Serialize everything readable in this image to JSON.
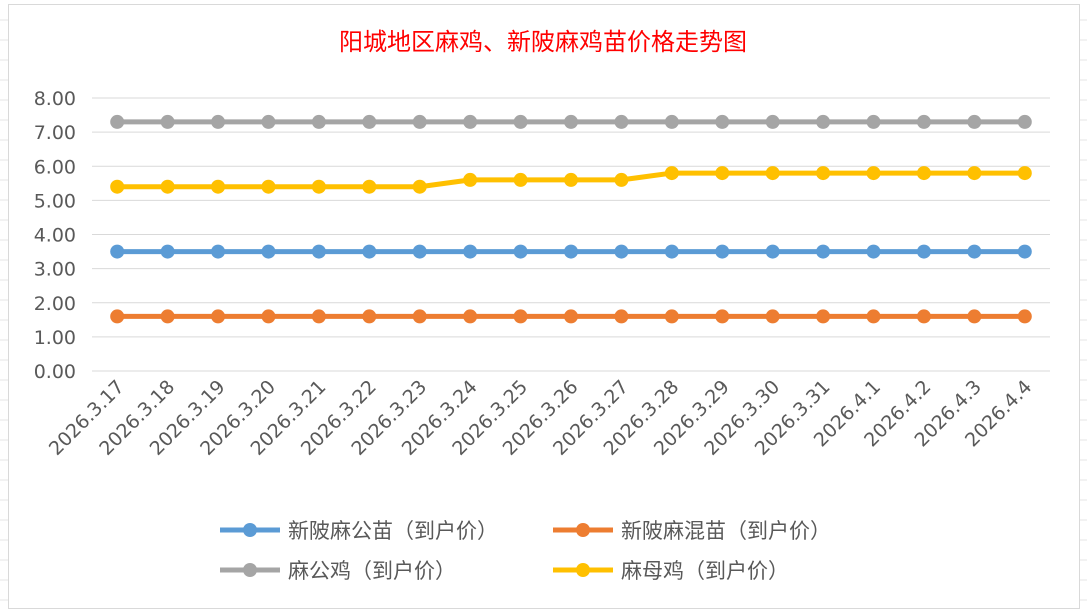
{
  "chart_data": {
    "type": "line",
    "title": "阳城地区麻鸡、新陂麻鸡苗价格走势图",
    "xlabel": "",
    "ylabel": "",
    "ylim": [
      0,
      8
    ],
    "yticks": [
      "0.00",
      "1.00",
      "2.00",
      "3.00",
      "4.00",
      "5.00",
      "6.00",
      "7.00",
      "8.00"
    ],
    "grid": true,
    "legend_position": "bottom",
    "categories": [
      "2026.3.17",
      "2026.3.18",
      "2026.3.19",
      "2026.3.20",
      "2026.3.21",
      "2026.3.22",
      "2026.3.23",
      "2026.3.24",
      "2026.3.25",
      "2026.3.26",
      "2026.3.27",
      "2026.3.28",
      "2026.3.29",
      "2026.3.30",
      "2026.3.31",
      "2026.4.1",
      "2026.4.2",
      "2026.4.3",
      "2026.4.4"
    ],
    "series": [
      {
        "name": "新陂麻公苗（到户价）",
        "color": "#5b9bd5",
        "values": [
          3.5,
          3.5,
          3.5,
          3.5,
          3.5,
          3.5,
          3.5,
          3.5,
          3.5,
          3.5,
          3.5,
          3.5,
          3.5,
          3.5,
          3.5,
          3.5,
          3.5,
          3.5,
          3.5
        ]
      },
      {
        "name": "新陂麻混苗（到户价）",
        "color": "#ed7d31",
        "values": [
          1.6,
          1.6,
          1.6,
          1.6,
          1.6,
          1.6,
          1.6,
          1.6,
          1.6,
          1.6,
          1.6,
          1.6,
          1.6,
          1.6,
          1.6,
          1.6,
          1.6,
          1.6,
          1.6
        ]
      },
      {
        "name": "麻公鸡（到户价）",
        "color": "#a5a5a5",
        "values": [
          7.3,
          7.3,
          7.3,
          7.3,
          7.3,
          7.3,
          7.3,
          7.3,
          7.3,
          7.3,
          7.3,
          7.3,
          7.3,
          7.3,
          7.3,
          7.3,
          7.3,
          7.3,
          7.3
        ]
      },
      {
        "name": "麻母鸡（到户价）",
        "color": "#ffc000",
        "values": [
          5.4,
          5.4,
          5.4,
          5.4,
          5.4,
          5.4,
          5.4,
          5.6,
          5.6,
          5.6,
          5.6,
          5.8,
          5.8,
          5.8,
          5.8,
          5.8,
          5.8,
          5.8,
          5.8
        ]
      }
    ]
  }
}
